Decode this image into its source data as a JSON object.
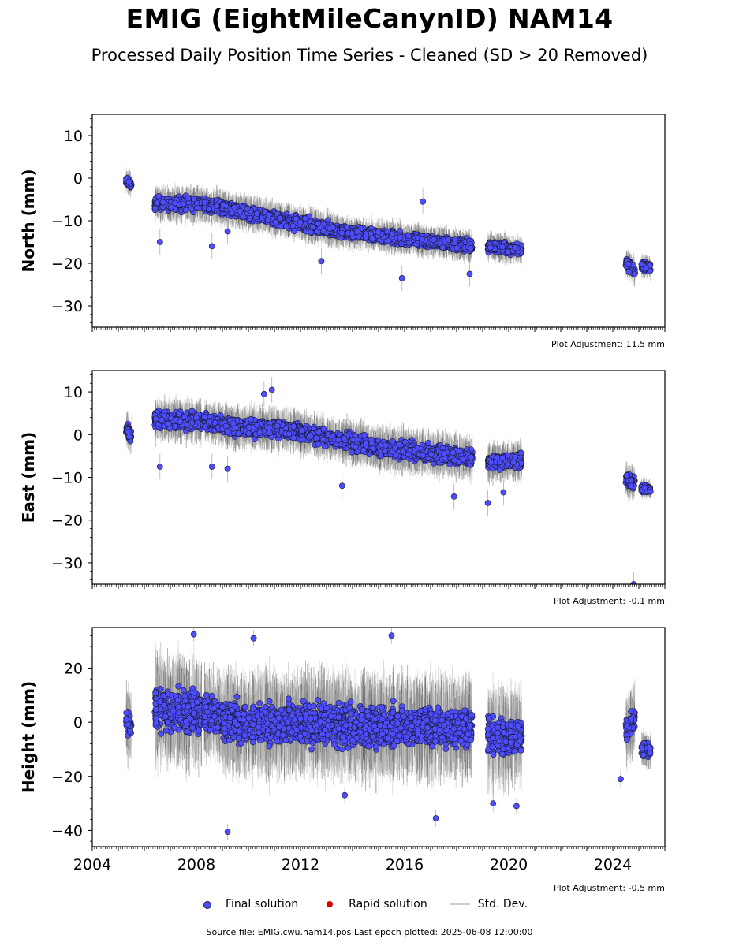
{
  "title": "EMIG (EightMileCanynID) NAM14",
  "subtitle": "Processed Daily Position Time Series - Cleaned (SD > 20 Removed)",
  "colors": {
    "final": "#4d4dff",
    "final_edge": "#1a1a33",
    "rapid": "#e00000",
    "stddev": "#b0b0b0",
    "stddev_dark": "#555555"
  },
  "legend": {
    "final": "Final solution",
    "rapid": "Rapid solution",
    "stddev": "Std. Dev."
  },
  "footer": "Source file: EMIG.cwu.nam14.pos  Last epoch plotted: 2025-06-08 12:00:00",
  "chart_data": [
    {
      "type": "scatter",
      "ylabel": "North (mm)",
      "xlim": [
        2004,
        2026
      ],
      "ylim": [
        -35,
        15
      ],
      "y_ticks": [
        10,
        0,
        -10,
        -20,
        -30
      ],
      "y_tick_labels": [
        "10",
        "0",
        "−10",
        "−20",
        "−30"
      ],
      "x_tick_labels_visible": false,
      "adjustment": "Plot Adjustment: 11.5 mm",
      "segments": [
        {
          "x": [
            2005.3,
            2005.5
          ],
          "y": [
            -0.5,
            -1.5
          ],
          "noise": 1.3
        },
        {
          "x": [
            2006.4,
            2008.3
          ],
          "y": [
            -6.0,
            -6.0
          ],
          "noise": 1.8
        },
        {
          "x": [
            2008.3,
            2009.0
          ],
          "y": [
            -6.5,
            -6.8
          ],
          "noise": 1.8
        },
        {
          "x": [
            2009.0,
            2013.5
          ],
          "y": [
            -7.0,
            -12.5
          ],
          "noise": 1.8
        },
        {
          "x": [
            2013.5,
            2018.6
          ],
          "y": [
            -12.5,
            -16.0
          ],
          "noise": 1.6
        },
        {
          "x": [
            2019.2,
            2020.5
          ],
          "y": [
            -16.0,
            -17.0
          ],
          "noise": 1.4
        },
        {
          "x": [
            2024.5,
            2024.85
          ],
          "y": [
            -20.0,
            -21.5
          ],
          "noise": 1.5
        },
        {
          "x": [
            2025.1,
            2025.45
          ],
          "y": [
            -20.5,
            -21.0
          ],
          "noise": 1.2
        }
      ],
      "outliers": [
        [
          2006.6,
          -15.0
        ],
        [
          2008.6,
          -16.0
        ],
        [
          2012.8,
          -19.5
        ],
        [
          2015.9,
          -23.5
        ],
        [
          2016.7,
          -5.5
        ],
        [
          2018.5,
          -22.5
        ],
        [
          2009.2,
          -12.5
        ]
      ]
    },
    {
      "type": "scatter",
      "ylabel": "East (mm)",
      "xlim": [
        2004,
        2026
      ],
      "ylim": [
        -35,
        15
      ],
      "y_ticks": [
        10,
        0,
        -10,
        -20,
        -30
      ],
      "y_tick_labels": [
        "10",
        "0",
        "−10",
        "−20",
        "−30"
      ],
      "x_tick_labels_visible": false,
      "adjustment": "Plot Adjustment: -0.1 mm",
      "segments": [
        {
          "x": [
            2005.3,
            2005.5
          ],
          "y": [
            1.5,
            -0.5
          ],
          "noise": 1.8
        },
        {
          "x": [
            2006.4,
            2008.2
          ],
          "y": [
            3.5,
            3.0
          ],
          "noise": 2.2
        },
        {
          "x": [
            2008.3,
            2009.0
          ],
          "y": [
            3.0,
            2.5
          ],
          "noise": 2.0
        },
        {
          "x": [
            2009.0,
            2012.0
          ],
          "y": [
            2.0,
            1.0
          ],
          "noise": 2.2
        },
        {
          "x": [
            2012.0,
            2015.0
          ],
          "y": [
            0.5,
            -3.0
          ],
          "noise": 2.2
        },
        {
          "x": [
            2015.0,
            2018.6
          ],
          "y": [
            -3.0,
            -5.5
          ],
          "noise": 2.3
        },
        {
          "x": [
            2019.2,
            2020.5
          ],
          "y": [
            -6.5,
            -6.0
          ],
          "noise": 2.0
        },
        {
          "x": [
            2024.5,
            2024.85
          ],
          "y": [
            -10.5,
            -11.0
          ],
          "noise": 1.8
        },
        {
          "x": [
            2025.1,
            2025.45
          ],
          "y": [
            -12.5,
            -13.0
          ],
          "noise": 1.0
        }
      ],
      "outliers": [
        [
          2006.6,
          -7.5
        ],
        [
          2008.6,
          -7.5
        ],
        [
          2009.2,
          -8.0
        ],
        [
          2010.6,
          9.5
        ],
        [
          2010.9,
          10.5
        ],
        [
          2013.6,
          -12.0
        ],
        [
          2019.2,
          -16.0
        ],
        [
          2019.8,
          -13.5
        ],
        [
          2024.8,
          -35.0
        ],
        [
          2017.9,
          -14.5
        ]
      ]
    },
    {
      "type": "scatter",
      "ylabel": "Height (mm)",
      "xlim": [
        2004,
        2026
      ],
      "ylim": [
        -46,
        35
      ],
      "y_ticks": [
        20,
        0,
        -20,
        -40
      ],
      "y_tick_labels": [
        "20",
        "0",
        "−20",
        "−40"
      ],
      "x_ticks": [
        2004,
        2008,
        2012,
        2016,
        2020,
        2024
      ],
      "x_tick_labels": [
        "2004",
        "2008",
        "2012",
        "2016",
        "2020",
        "2024"
      ],
      "x_tick_labels_visible": true,
      "adjustment": "Plot Adjustment: -0.5 mm",
      "segments": [
        {
          "x": [
            2005.3,
            2005.5
          ],
          "y": [
            0.0,
            -2.0
          ],
          "noise": 6.0
        },
        {
          "x": [
            2006.4,
            2008.2
          ],
          "y": [
            5.0,
            3.0
          ],
          "noise": 9.0
        },
        {
          "x": [
            2008.3,
            2009.0
          ],
          "y": [
            3.0,
            2.0
          ],
          "noise": 7.0
        },
        {
          "x": [
            2009.0,
            2018.6
          ],
          "y": [
            0.0,
            -2.0
          ],
          "noise": 8.5
        },
        {
          "x": [
            2019.2,
            2020.5
          ],
          "y": [
            -5.0,
            -5.0
          ],
          "noise": 8.0
        },
        {
          "x": [
            2024.5,
            2024.85
          ],
          "y": [
            -3.0,
            2.0
          ],
          "noise": 6.0
        },
        {
          "x": [
            2025.1,
            2025.45
          ],
          "y": [
            -10.0,
            -11.0
          ],
          "noise": 3.0
        }
      ],
      "outliers": [
        [
          2007.9,
          32.5
        ],
        [
          2010.2,
          31.0
        ],
        [
          2015.5,
          32.0
        ],
        [
          2009.2,
          -40.5
        ],
        [
          2017.2,
          -35.5
        ],
        [
          2013.7,
          -27.0
        ],
        [
          2019.4,
          -30.0
        ],
        [
          2020.3,
          -31.0
        ],
        [
          2024.3,
          -21.0
        ]
      ]
    }
  ]
}
